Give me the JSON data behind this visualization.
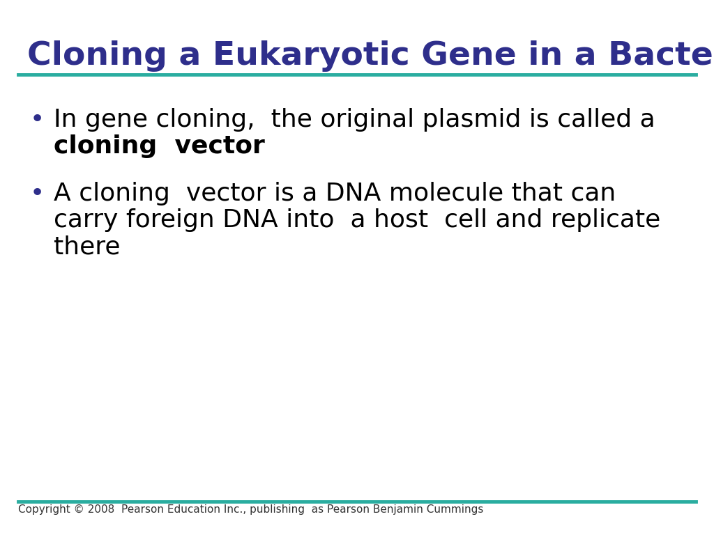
{
  "title": "Cloning a Eukaryotic Gene in a Bacterial Plasmid",
  "title_color": "#2E2E8B",
  "title_fontsize": 34,
  "title_font": "DejaVu Sans",
  "title_weight": "bold",
  "line_color": "#2AADA0",
  "bullet_color": "#2E2E8B",
  "text_color": "#000000",
  "text_fontsize": 26,
  "text_font": "DejaVu Sans",
  "bullet1_normal": "In gene cloning,  the original plasmid is called a",
  "bullet1_bold": "cloning  vector",
  "bullet2_line1": "A cloning  vector is a DNA molecule that can",
  "bullet2_line2": "carry foreign DNA into  a host  cell and replicate",
  "bullet2_line3": "there",
  "copyright_text": "Copyright © 2008  Pearson Education Inc., publishing  as Pearson Benjamin Cummings",
  "copyright_fontsize": 11,
  "copyright_color": "#333333",
  "background_color": "#FFFFFF"
}
